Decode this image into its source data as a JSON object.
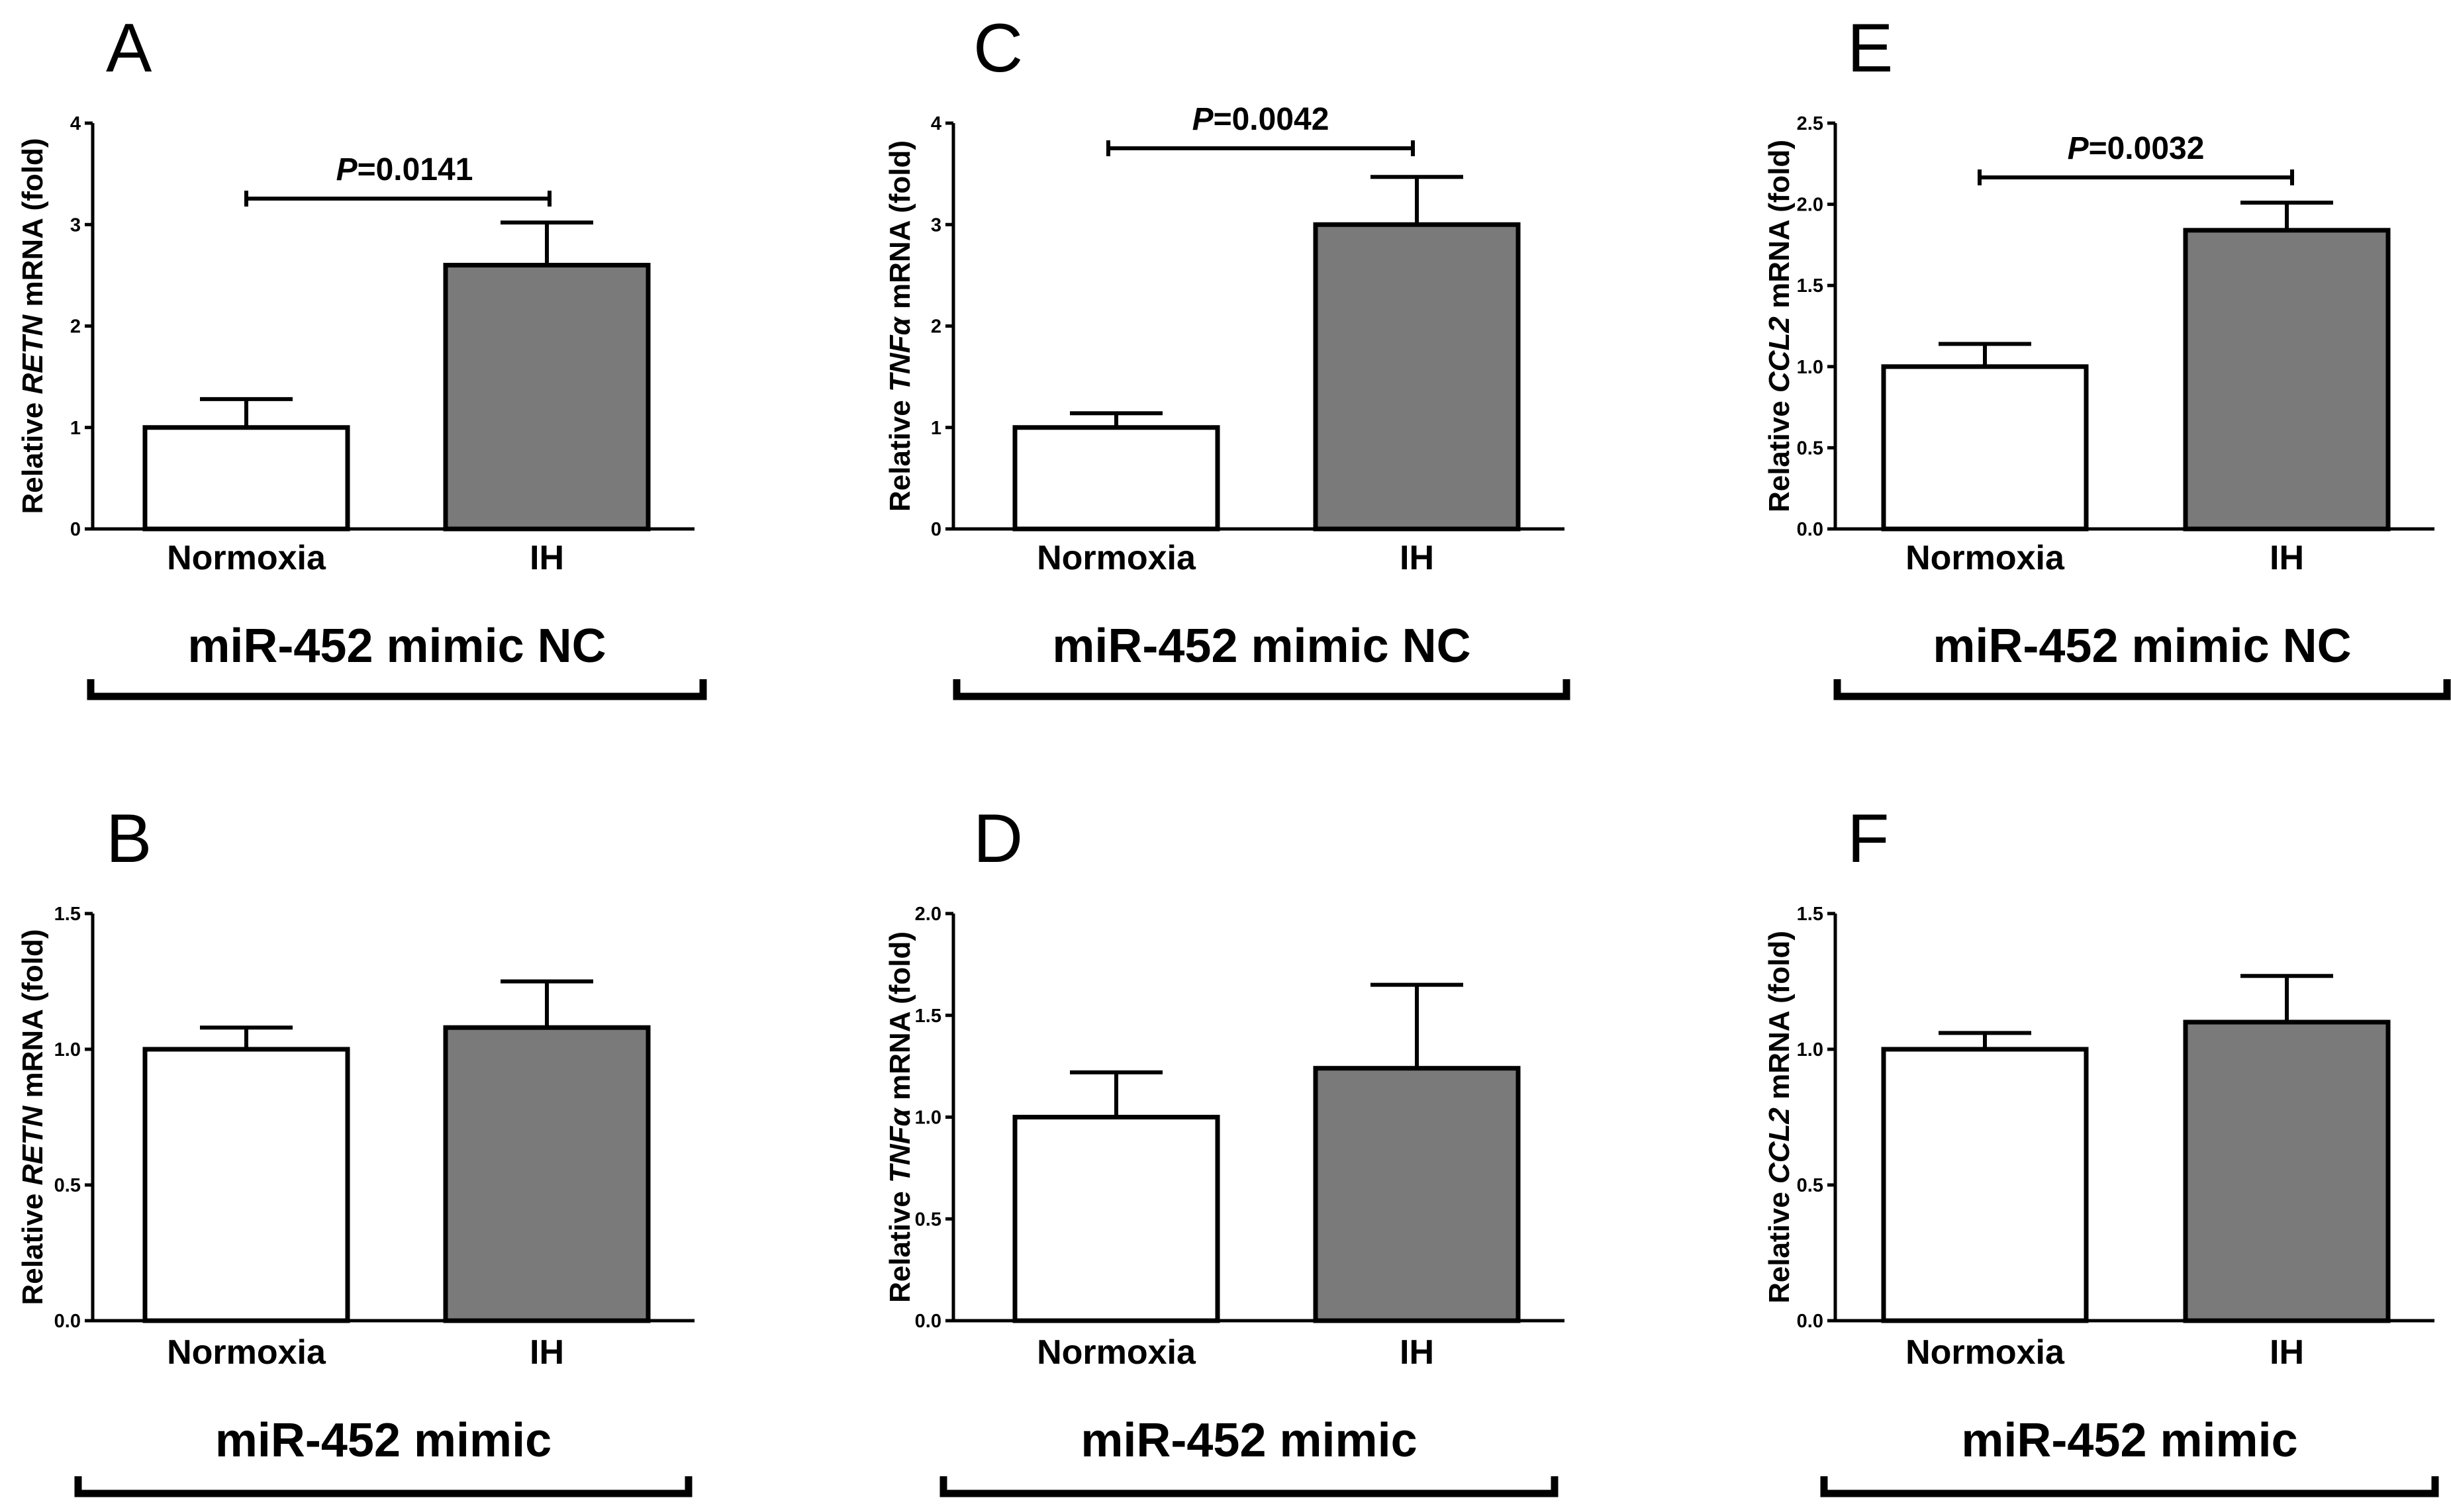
{
  "colors": {
    "bar_normoxia": "#ffffff",
    "bar_ih": "#7a7a7a",
    "stroke": "#000000"
  },
  "chart_data": [
    {
      "panel": "A",
      "type": "bar",
      "gene": "RETN",
      "ylabel_prefix": "Relative ",
      "ylabel_suffix": " mRNA (fold)",
      "categories": [
        "Normoxia",
        "IH"
      ],
      "values": [
        1.0,
        2.6
      ],
      "errors": [
        0.28,
        0.42
      ],
      "ylim": [
        0,
        4
      ],
      "yticks": [
        "0",
        "1",
        "2",
        "3",
        "4"
      ],
      "significance": {
        "p_letter": "P",
        "p_value": "=0.0141"
      },
      "group_label": "miR-452 mimic NC"
    },
    {
      "panel": "B",
      "type": "bar",
      "gene": "RETN",
      "ylabel_prefix": "Relative ",
      "ylabel_suffix": " mRNA (fold)",
      "categories": [
        "Normoxia",
        "IH"
      ],
      "values": [
        1.0,
        1.08
      ],
      "errors": [
        0.08,
        0.17
      ],
      "ylim": [
        0,
        1.5
      ],
      "yticks": [
        "0.0",
        "0.5",
        "1.0",
        "1.5"
      ],
      "significance": null,
      "group_label": "miR-452 mimic"
    },
    {
      "panel": "C",
      "type": "bar",
      "gene": "TNFα",
      "ylabel_prefix": "Relative ",
      "ylabel_suffix": " mRNA (fold)",
      "categories": [
        "Normoxia",
        "IH"
      ],
      "values": [
        1.0,
        3.0
      ],
      "errors": [
        0.14,
        0.47
      ],
      "ylim": [
        0,
        4
      ],
      "yticks": [
        "0",
        "1",
        "2",
        "3",
        "4"
      ],
      "significance": {
        "p_letter": "P",
        "p_value": "=0.0042"
      },
      "group_label": "miR-452 mimic NC"
    },
    {
      "panel": "D",
      "type": "bar",
      "gene": "TNFα",
      "ylabel_prefix": "Relative ",
      "ylabel_suffix": " mRNA (fold)",
      "categories": [
        "Normoxia",
        "IH"
      ],
      "values": [
        1.0,
        1.24
      ],
      "errors": [
        0.22,
        0.41
      ],
      "ylim": [
        0,
        2.0
      ],
      "yticks": [
        "0.0",
        "0.5",
        "1.0",
        "1.5",
        "2.0"
      ],
      "significance": null,
      "group_label": "miR-452 mimic"
    },
    {
      "panel": "E",
      "type": "bar",
      "gene": "CCL2",
      "ylabel_prefix": "Relative ",
      "ylabel_suffix": " mRNA (fold)",
      "categories": [
        "Normoxia",
        "IH"
      ],
      "values": [
        1.0,
        1.84
      ],
      "errors": [
        0.14,
        0.17
      ],
      "ylim": [
        0,
        2.5
      ],
      "yticks": [
        "0.0",
        "0.5",
        "1.0",
        "1.5",
        "2.0",
        "2.5"
      ],
      "significance": {
        "p_letter": "P",
        "p_value": "=0.0032"
      },
      "group_label": "miR-452 mimic NC"
    },
    {
      "panel": "F",
      "type": "bar",
      "gene": "CCL2",
      "ylabel_prefix": "Relative ",
      "ylabel_suffix": " mRNA (fold)",
      "categories": [
        "Normoxia",
        "IH"
      ],
      "values": [
        1.0,
        1.1
      ],
      "errors": [
        0.06,
        0.17
      ],
      "ylim": [
        0,
        1.5
      ],
      "yticks": [
        "0.0",
        "0.5",
        "1.0",
        "1.5"
      ],
      "significance": null,
      "group_label": "miR-452 mimic"
    }
  ]
}
